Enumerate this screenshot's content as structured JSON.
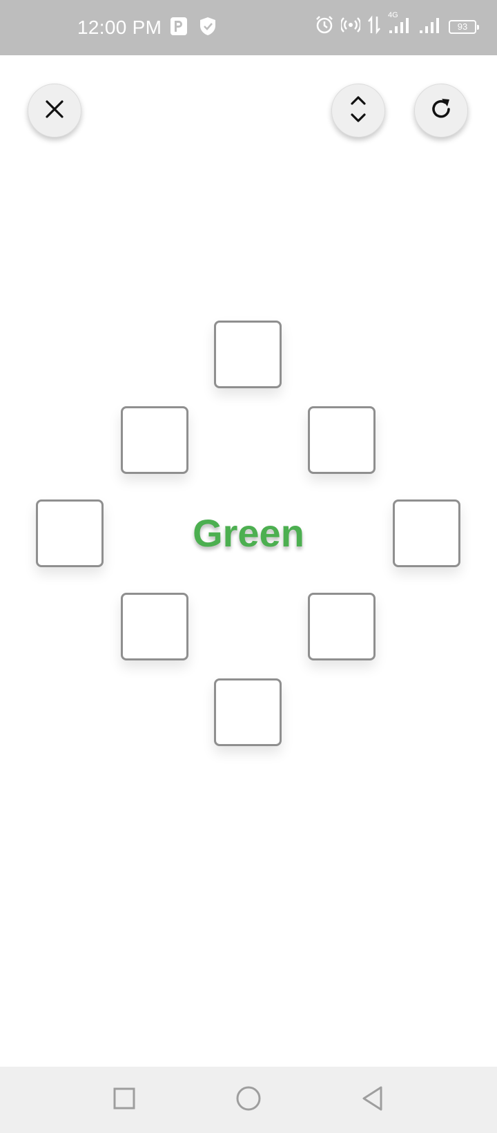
{
  "status_bar": {
    "time": "12:00 PM",
    "network": "4G",
    "battery": "93",
    "icons": [
      "parking-icon",
      "shield-icon",
      "alarm-icon",
      "hotspot-icon",
      "data-arrows-icon",
      "signal-icon",
      "signal-icon",
      "battery-icon"
    ]
  },
  "toolbar": {
    "close_icon": "close-icon",
    "expand_icon": "expand-collapse-icon",
    "refresh_icon": "refresh-icon"
  },
  "game": {
    "center_word": "Green",
    "center_word_color": "#4caf50",
    "tiles": [
      {
        "position": "top",
        "color": "#ffffff"
      },
      {
        "position": "upper-left",
        "color": "#ffffff"
      },
      {
        "position": "upper-right",
        "color": "#ffffff"
      },
      {
        "position": "left",
        "color": "#ffffff"
      },
      {
        "position": "right",
        "color": "#ffffff"
      },
      {
        "position": "lower-left",
        "color": "#ffffff"
      },
      {
        "position": "lower-right",
        "color": "#ffffff"
      },
      {
        "position": "bottom",
        "color": "#ffffff"
      }
    ]
  },
  "nav_bar": {
    "recent_icon": "square-icon",
    "home_icon": "circle-icon",
    "back_icon": "triangle-back-icon"
  }
}
